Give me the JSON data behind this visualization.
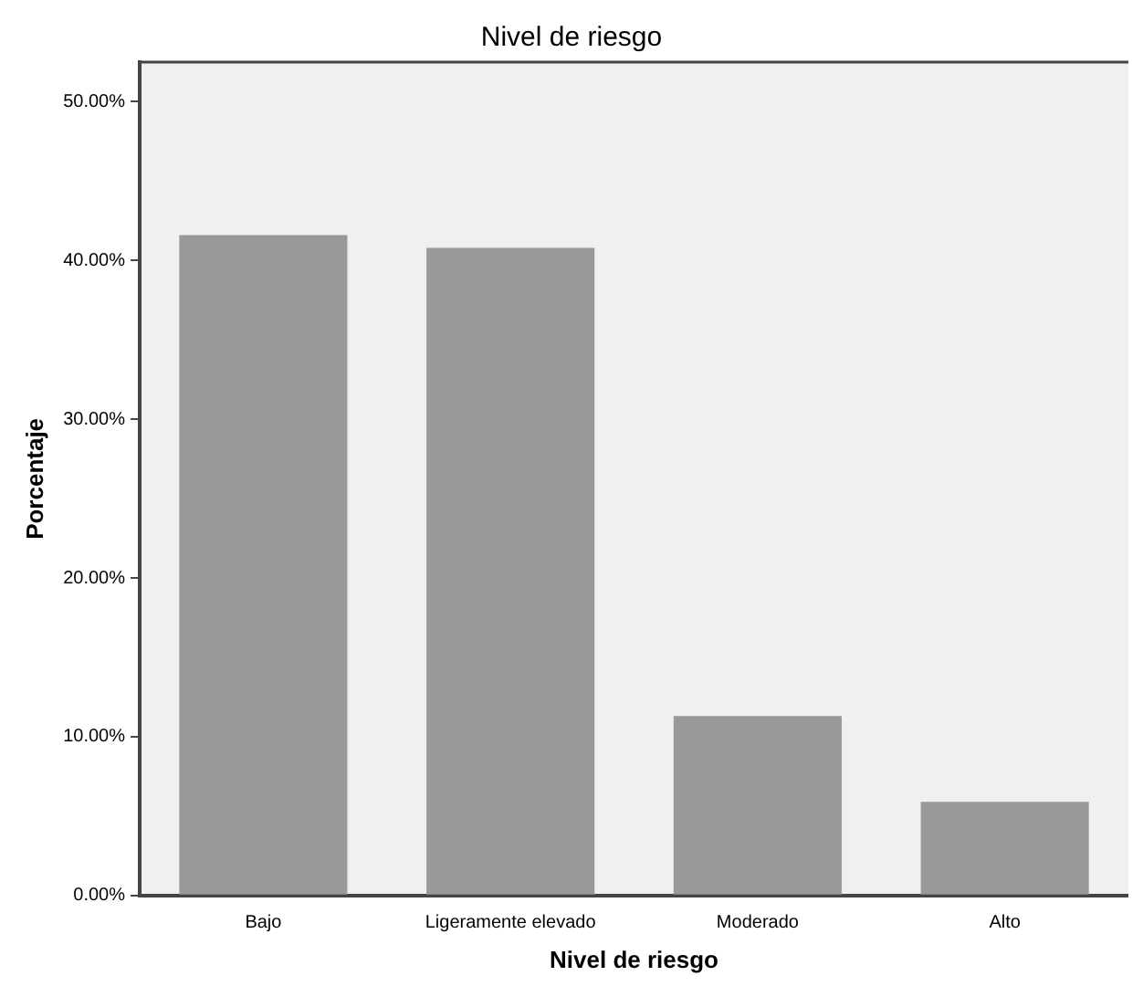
{
  "chart_data": {
    "type": "bar",
    "title": "Nivel de riesgo",
    "xlabel": "Nivel de riesgo",
    "ylabel": "Porcentaje",
    "categories": [
      "Bajo",
      "Ligeramente elevado",
      "Moderado",
      "Alto"
    ],
    "values": [
      41.6,
      40.8,
      11.3,
      5.9
    ],
    "color": "#999999",
    "ylim": [
      0,
      52.5
    ],
    "yticks": [
      {
        "value": 0,
        "label": "0.00%"
      },
      {
        "value": 10,
        "label": "10.00%"
      },
      {
        "value": 20,
        "label": "20.00%"
      },
      {
        "value": 30,
        "label": "30.00%"
      },
      {
        "value": 40,
        "label": "40.00%"
      },
      {
        "value": 50,
        "label": "50.00%"
      }
    ],
    "grid": false,
    "legend": false
  }
}
